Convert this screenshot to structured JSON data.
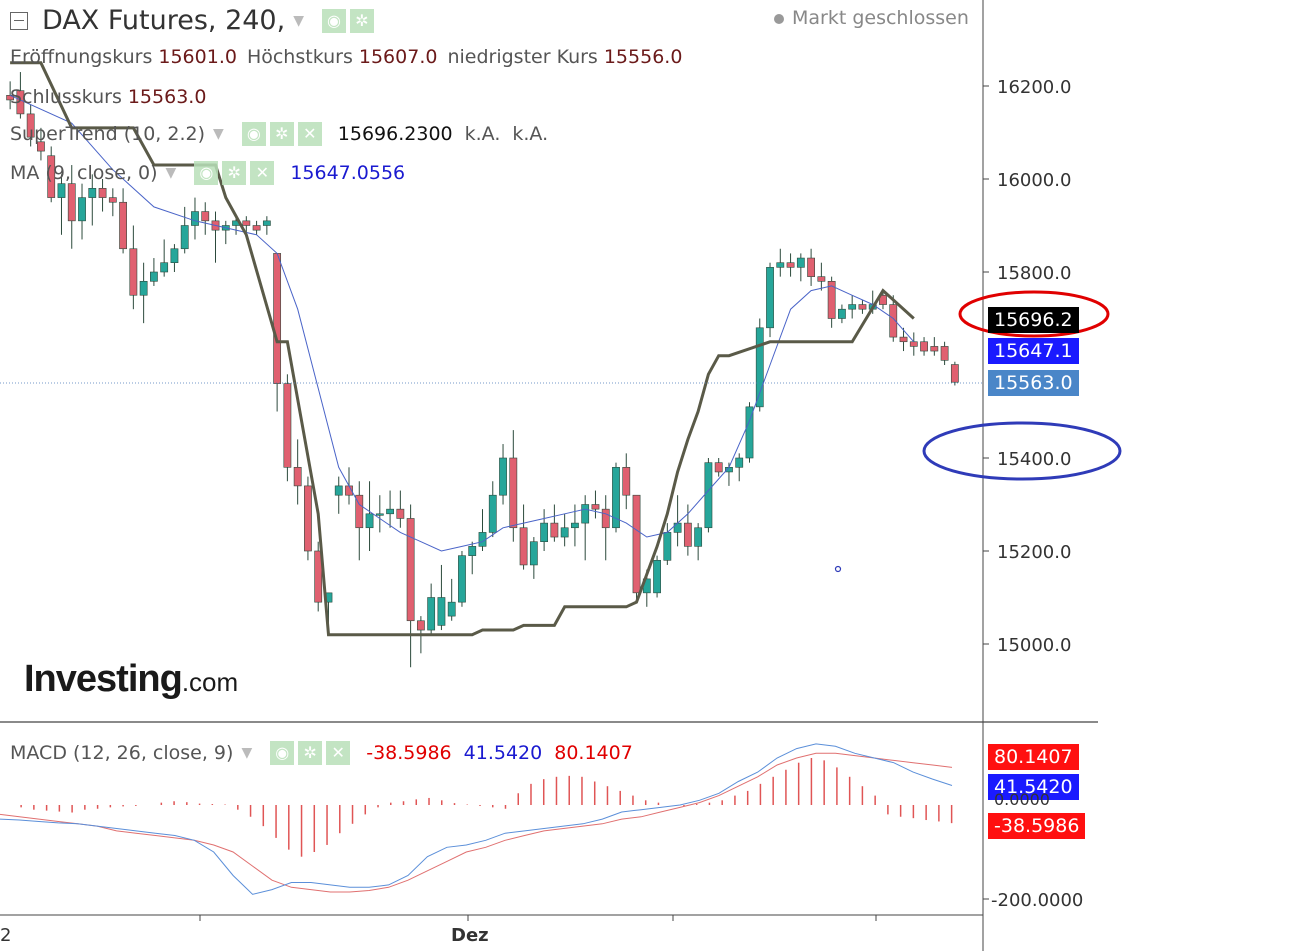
{
  "header": {
    "title": "DAX Futures, 240,",
    "status": "Markt geschlossen",
    "ohlc": [
      {
        "label": "Eröffnungskurs",
        "value": "15601.0"
      },
      {
        "label": "Höchstkurs",
        "value": "15607.0"
      },
      {
        "label": "niedrigster Kurs",
        "value": "15556.0"
      }
    ],
    "close": {
      "label": "Schlusskurs",
      "value": "15563.0"
    }
  },
  "indicators": {
    "supertrend": {
      "label": "SuperTrend (10, 2.2)",
      "value": "15696.2300",
      "extra1": "k.A.",
      "extra2": "k.A."
    },
    "ma": {
      "label": "MA (9, close, 0)",
      "value": "15647.0556"
    },
    "macd": {
      "label": "MACD (12, 26, close, 9)",
      "hist": "-38.5986",
      "macd": "41.5420",
      "signal": "80.1407"
    }
  },
  "price_tags": {
    "supertrend": "15696.2",
    "ma": "15647.1",
    "last": "15563.0",
    "macd_signal": "80.1407",
    "macd_line": "41.5420",
    "macd_hist": "-38.5986",
    "macd_zero": "0.0000"
  },
  "logo": {
    "main": "Investing",
    "suffix": ".com"
  },
  "x_axis": {
    "left_label": "2",
    "month_label": "Dez"
  },
  "colors": {
    "up": "#26a69a",
    "down": "#e06070",
    "supertrend": "#5a5a48",
    "ma": "#4a64c8",
    "macd_line": "#5b8fd9",
    "signal_line": "#e07070",
    "hist": "#e05555",
    "annot_red": "#e00000",
    "annot_blue": "#2f3bb8"
  },
  "chart_data": {
    "type": "candlestick",
    "ylim": [
      14900,
      16400
    ],
    "y_ticks": [
      {
        "value": 15000,
        "label": "15000.0"
      },
      {
        "value": 15200,
        "label": "15200.0"
      },
      {
        "value": 15400,
        "label": "15400.0"
      },
      {
        "value": 15800,
        "label": "15800.0"
      },
      {
        "value": 16000,
        "label": "16000.0"
      },
      {
        "value": 16200,
        "label": "16200.0"
      }
    ],
    "candles": [
      {
        "o": 16180,
        "h": 16210,
        "l": 16150,
        "c": 16170
      },
      {
        "o": 16190,
        "h": 16230,
        "l": 16130,
        "c": 16140
      },
      {
        "o": 16140,
        "h": 16160,
        "l": 16070,
        "c": 16090
      },
      {
        "o": 16080,
        "h": 16110,
        "l": 16040,
        "c": 16060
      },
      {
        "o": 16050,
        "h": 16070,
        "l": 15950,
        "c": 15960
      },
      {
        "o": 15960,
        "h": 16010,
        "l": 15880,
        "c": 15990
      },
      {
        "o": 15990,
        "h": 16030,
        "l": 15850,
        "c": 15910
      },
      {
        "o": 15910,
        "h": 15990,
        "l": 15870,
        "c": 15960
      },
      {
        "o": 15960,
        "h": 16010,
        "l": 15900,
        "c": 15980
      },
      {
        "o": 15980,
        "h": 16000,
        "l": 15930,
        "c": 15960
      },
      {
        "o": 15960,
        "h": 15980,
        "l": 15920,
        "c": 15950
      },
      {
        "o": 15950,
        "h": 15980,
        "l": 15840,
        "c": 15850
      },
      {
        "o": 15850,
        "h": 15900,
        "l": 15720,
        "c": 15750
      },
      {
        "o": 15750,
        "h": 15820,
        "l": 15690,
        "c": 15780
      },
      {
        "o": 15780,
        "h": 15830,
        "l": 15770,
        "c": 15800
      },
      {
        "o": 15800,
        "h": 15870,
        "l": 15790,
        "c": 15820
      },
      {
        "o": 15820,
        "h": 15860,
        "l": 15800,
        "c": 15850
      },
      {
        "o": 15850,
        "h": 15940,
        "l": 15840,
        "c": 15900
      },
      {
        "o": 15900,
        "h": 15960,
        "l": 15870,
        "c": 15930
      },
      {
        "o": 15930,
        "h": 15950,
        "l": 15880,
        "c": 15910
      },
      {
        "o": 15910,
        "h": 15930,
        "l": 15820,
        "c": 15890
      },
      {
        "o": 15890,
        "h": 15910,
        "l": 15860,
        "c": 15900
      },
      {
        "o": 15900,
        "h": 15920,
        "l": 15880,
        "c": 15910
      },
      {
        "o": 15910,
        "h": 15920,
        "l": 15880,
        "c": 15900
      },
      {
        "o": 15900,
        "h": 15910,
        "l": 15880,
        "c": 15890
      },
      {
        "o": 15900,
        "h": 15920,
        "l": 15880,
        "c": 15910
      },
      {
        "o": 15840,
        "h": 15840,
        "l": 15500,
        "c": 15560
      },
      {
        "o": 15560,
        "h": 15580,
        "l": 15350,
        "c": 15380
      },
      {
        "o": 15380,
        "h": 15440,
        "l": 15300,
        "c": 15340
      },
      {
        "o": 15340,
        "h": 15360,
        "l": 15180,
        "c": 15200
      },
      {
        "o": 15200,
        "h": 15220,
        "l": 15070,
        "c": 15090
      },
      {
        "o": 15090,
        "h": 15110,
        "l": 15040,
        "c": 15110
      },
      {
        "o": 15320,
        "h": 15360,
        "l": 15280,
        "c": 15340
      },
      {
        "o": 15340,
        "h": 15380,
        "l": 15300,
        "c": 15320
      },
      {
        "o": 15320,
        "h": 15350,
        "l": 15180,
        "c": 15250
      },
      {
        "o": 15250,
        "h": 15350,
        "l": 15200,
        "c": 15280
      },
      {
        "o": 15280,
        "h": 15320,
        "l": 15240,
        "c": 15280
      },
      {
        "o": 15280,
        "h": 15330,
        "l": 15250,
        "c": 15290
      },
      {
        "o": 15290,
        "h": 15330,
        "l": 15250,
        "c": 15270
      },
      {
        "o": 15270,
        "h": 15300,
        "l": 14950,
        "c": 15050
      },
      {
        "o": 15050,
        "h": 15060,
        "l": 14980,
        "c": 15030
      },
      {
        "o": 15030,
        "h": 15130,
        "l": 15020,
        "c": 15100
      },
      {
        "o": 15040,
        "h": 15170,
        "l": 15030,
        "c": 15100
      },
      {
        "o": 15060,
        "h": 15140,
        "l": 15050,
        "c": 15090
      },
      {
        "o": 15090,
        "h": 15200,
        "l": 15080,
        "c": 15190
      },
      {
        "o": 15190,
        "h": 15220,
        "l": 15150,
        "c": 15210
      },
      {
        "o": 15210,
        "h": 15290,
        "l": 15200,
        "c": 15240
      },
      {
        "o": 15240,
        "h": 15350,
        "l": 15230,
        "c": 15320
      },
      {
        "o": 15320,
        "h": 15430,
        "l": 15300,
        "c": 15400
      },
      {
        "o": 15400,
        "h": 15460,
        "l": 15220,
        "c": 15250
      },
      {
        "o": 15250,
        "h": 15300,
        "l": 15160,
        "c": 15170
      },
      {
        "o": 15170,
        "h": 15230,
        "l": 15140,
        "c": 15220
      },
      {
        "o": 15220,
        "h": 15290,
        "l": 15200,
        "c": 15260
      },
      {
        "o": 15260,
        "h": 15300,
        "l": 15220,
        "c": 15230
      },
      {
        "o": 15230,
        "h": 15280,
        "l": 15210,
        "c": 15250
      },
      {
        "o": 15250,
        "h": 15300,
        "l": 15210,
        "c": 15260
      },
      {
        "o": 15260,
        "h": 15320,
        "l": 15180,
        "c": 15300
      },
      {
        "o": 15300,
        "h": 15330,
        "l": 15270,
        "c": 15290
      },
      {
        "o": 15290,
        "h": 15320,
        "l": 15180,
        "c": 15250
      },
      {
        "o": 15250,
        "h": 15390,
        "l": 15240,
        "c": 15380
      },
      {
        "o": 15380,
        "h": 15410,
        "l": 15290,
        "c": 15320
      },
      {
        "o": 15320,
        "h": 15320,
        "l": 15090,
        "c": 15110
      },
      {
        "o": 15110,
        "h": 15160,
        "l": 15080,
        "c": 15140
      },
      {
        "o": 15110,
        "h": 15190,
        "l": 15100,
        "c": 15180
      },
      {
        "o": 15180,
        "h": 15260,
        "l": 15170,
        "c": 15240
      },
      {
        "o": 15240,
        "h": 15320,
        "l": 15210,
        "c": 15260
      },
      {
        "o": 15260,
        "h": 15300,
        "l": 15190,
        "c": 15210
      },
      {
        "o": 15210,
        "h": 15260,
        "l": 15180,
        "c": 15250
      },
      {
        "o": 15250,
        "h": 15400,
        "l": 15240,
        "c": 15390
      },
      {
        "o": 15390,
        "h": 15400,
        "l": 15360,
        "c": 15370
      },
      {
        "o": 15370,
        "h": 15390,
        "l": 15340,
        "c": 15380
      },
      {
        "o": 15380,
        "h": 15410,
        "l": 15350,
        "c": 15400
      },
      {
        "o": 15400,
        "h": 15520,
        "l": 15390,
        "c": 15510
      },
      {
        "o": 15510,
        "h": 15700,
        "l": 15500,
        "c": 15680
      },
      {
        "o": 15680,
        "h": 15820,
        "l": 15660,
        "c": 15810
      },
      {
        "o": 15810,
        "h": 15850,
        "l": 15790,
        "c": 15820
      },
      {
        "o": 15820,
        "h": 15840,
        "l": 15790,
        "c": 15810
      },
      {
        "o": 15810,
        "h": 15840,
        "l": 15780,
        "c": 15830
      },
      {
        "o": 15830,
        "h": 15850,
        "l": 15770,
        "c": 15790
      },
      {
        "o": 15790,
        "h": 15820,
        "l": 15760,
        "c": 15780
      },
      {
        "o": 15780,
        "h": 15790,
        "l": 15680,
        "c": 15700
      },
      {
        "o": 15700,
        "h": 15730,
        "l": 15690,
        "c": 15720
      },
      {
        "o": 15720,
        "h": 15750,
        "l": 15700,
        "c": 15730
      },
      {
        "o": 15730,
        "h": 15740,
        "l": 15710,
        "c": 15720
      },
      {
        "o": 15720,
        "h": 15760,
        "l": 15710,
        "c": 15730
      },
      {
        "o": 15750,
        "h": 15760,
        "l": 15720,
        "c": 15730
      },
      {
        "o": 15730,
        "h": 15750,
        "l": 15650,
        "c": 15660
      },
      {
        "o": 15660,
        "h": 15680,
        "l": 15630,
        "c": 15650
      },
      {
        "o": 15650,
        "h": 15670,
        "l": 15620,
        "c": 15640
      },
      {
        "o": 15650,
        "h": 15660,
        "l": 15620,
        "c": 15630
      },
      {
        "o": 15640,
        "h": 15660,
        "l": 15620,
        "c": 15630
      },
      {
        "o": 15640,
        "h": 15650,
        "l": 15600,
        "c": 15610
      },
      {
        "o": 15601,
        "h": 15607,
        "l": 15556,
        "c": 15563
      }
    ],
    "supertrend_path": [
      [
        0,
        16250
      ],
      [
        3,
        16250
      ],
      [
        6,
        16110
      ],
      [
        12,
        16110
      ],
      [
        14,
        16030
      ],
      [
        20,
        16030
      ],
      [
        21,
        15960
      ],
      [
        23,
        15880
      ],
      [
        26,
        15650
      ],
      [
        27,
        15650
      ],
      [
        30,
        15280
      ],
      [
        31,
        15020
      ],
      [
        36,
        15020
      ],
      [
        42,
        15020
      ],
      [
        45,
        15020
      ],
      [
        46,
        15030
      ],
      [
        49,
        15030
      ],
      [
        50,
        15040
      ],
      [
        53,
        15040
      ],
      [
        54,
        15080
      ],
      [
        57,
        15080
      ],
      [
        60,
        15080
      ],
      [
        61,
        15090
      ],
      [
        62,
        15150
      ],
      [
        63,
        15210
      ],
      [
        64,
        15280
      ],
      [
        65,
        15370
      ],
      [
        66,
        15440
      ],
      [
        67,
        15500
      ],
      [
        68,
        15580
      ],
      [
        69,
        15620
      ],
      [
        70,
        15620
      ],
      [
        74,
        15650
      ],
      [
        80,
        15650
      ],
      [
        82,
        15650
      ],
      [
        85,
        15760
      ],
      [
        88,
        15700
      ]
    ],
    "ma_path": [
      [
        0,
        16180
      ],
      [
        6,
        16120
      ],
      [
        10,
        16020
      ],
      [
        14,
        15940
      ],
      [
        18,
        15910
      ],
      [
        22,
        15890
      ],
      [
        24,
        15880
      ],
      [
        26,
        15840
      ],
      [
        28,
        15720
      ],
      [
        30,
        15550
      ],
      [
        32,
        15380
      ],
      [
        34,
        15300
      ],
      [
        36,
        15270
      ],
      [
        38,
        15240
      ],
      [
        40,
        15220
      ],
      [
        42,
        15200
      ],
      [
        44,
        15210
      ],
      [
        46,
        15220
      ],
      [
        48,
        15250
      ],
      [
        50,
        15260
      ],
      [
        52,
        15270
      ],
      [
        54,
        15280
      ],
      [
        56,
        15290
      ],
      [
        58,
        15280
      ],
      [
        60,
        15260
      ],
      [
        62,
        15230
      ],
      [
        64,
        15240
      ],
      [
        66,
        15280
      ],
      [
        68,
        15330
      ],
      [
        70,
        15380
      ],
      [
        72,
        15480
      ],
      [
        74,
        15600
      ],
      [
        76,
        15720
      ],
      [
        78,
        15760
      ],
      [
        80,
        15770
      ],
      [
        82,
        15750
      ],
      [
        84,
        15730
      ],
      [
        86,
        15700
      ],
      [
        88,
        15650
      ]
    ],
    "macd": {
      "ylim": [
        -220,
        160
      ],
      "y_ticks": [
        {
          "value": -200,
          "label": "-200.0000"
        }
      ],
      "hist": [
        0,
        -5,
        -10,
        -12,
        -14,
        -16,
        -10,
        -8,
        -5,
        -3,
        -2,
        0,
        5,
        8,
        6,
        3,
        2,
        1,
        -10,
        -25,
        -45,
        -70,
        -95,
        -110,
        -100,
        -85,
        -60,
        -40,
        -20,
        -5,
        5,
        8,
        12,
        15,
        10,
        4,
        1,
        -2,
        -5,
        -8,
        25,
        45,
        55,
        60,
        62,
        60,
        50,
        40,
        30,
        20,
        10,
        5,
        0,
        -2,
        2,
        5,
        10,
        20,
        30,
        45,
        60,
        75,
        90,
        100,
        95,
        80,
        60,
        40,
        20,
        -20,
        -25,
        -28,
        -32,
        -35,
        -38.6
      ],
      "macd_line": [
        -30,
        -32,
        -35,
        -38,
        -40,
        -45,
        -50,
        -55,
        -60,
        -65,
        -75,
        -100,
        -150,
        -190,
        -180,
        -165,
        -165,
        -170,
        -175,
        -175,
        -170,
        -150,
        -110,
        -90,
        -85,
        -75,
        -60,
        -55,
        -50,
        -45,
        -40,
        -30,
        -15,
        -10,
        -5,
        0,
        10,
        25,
        50,
        70,
        100,
        120,
        130,
        125,
        110,
        100,
        90,
        70,
        55,
        41.5
      ],
      "signal_line": [
        -20,
        -25,
        -30,
        -35,
        -40,
        -45,
        -55,
        -60,
        -65,
        -70,
        -75,
        -85,
        -100,
        -130,
        -160,
        -175,
        -180,
        -185,
        -185,
        -182,
        -175,
        -160,
        -140,
        -120,
        -100,
        -90,
        -75,
        -65,
        -55,
        -50,
        -45,
        -40,
        -30,
        -25,
        -15,
        -5,
        5,
        20,
        40,
        60,
        85,
        100,
        110,
        110,
        105,
        100,
        95,
        90,
        85,
        80.1
      ]
    }
  }
}
